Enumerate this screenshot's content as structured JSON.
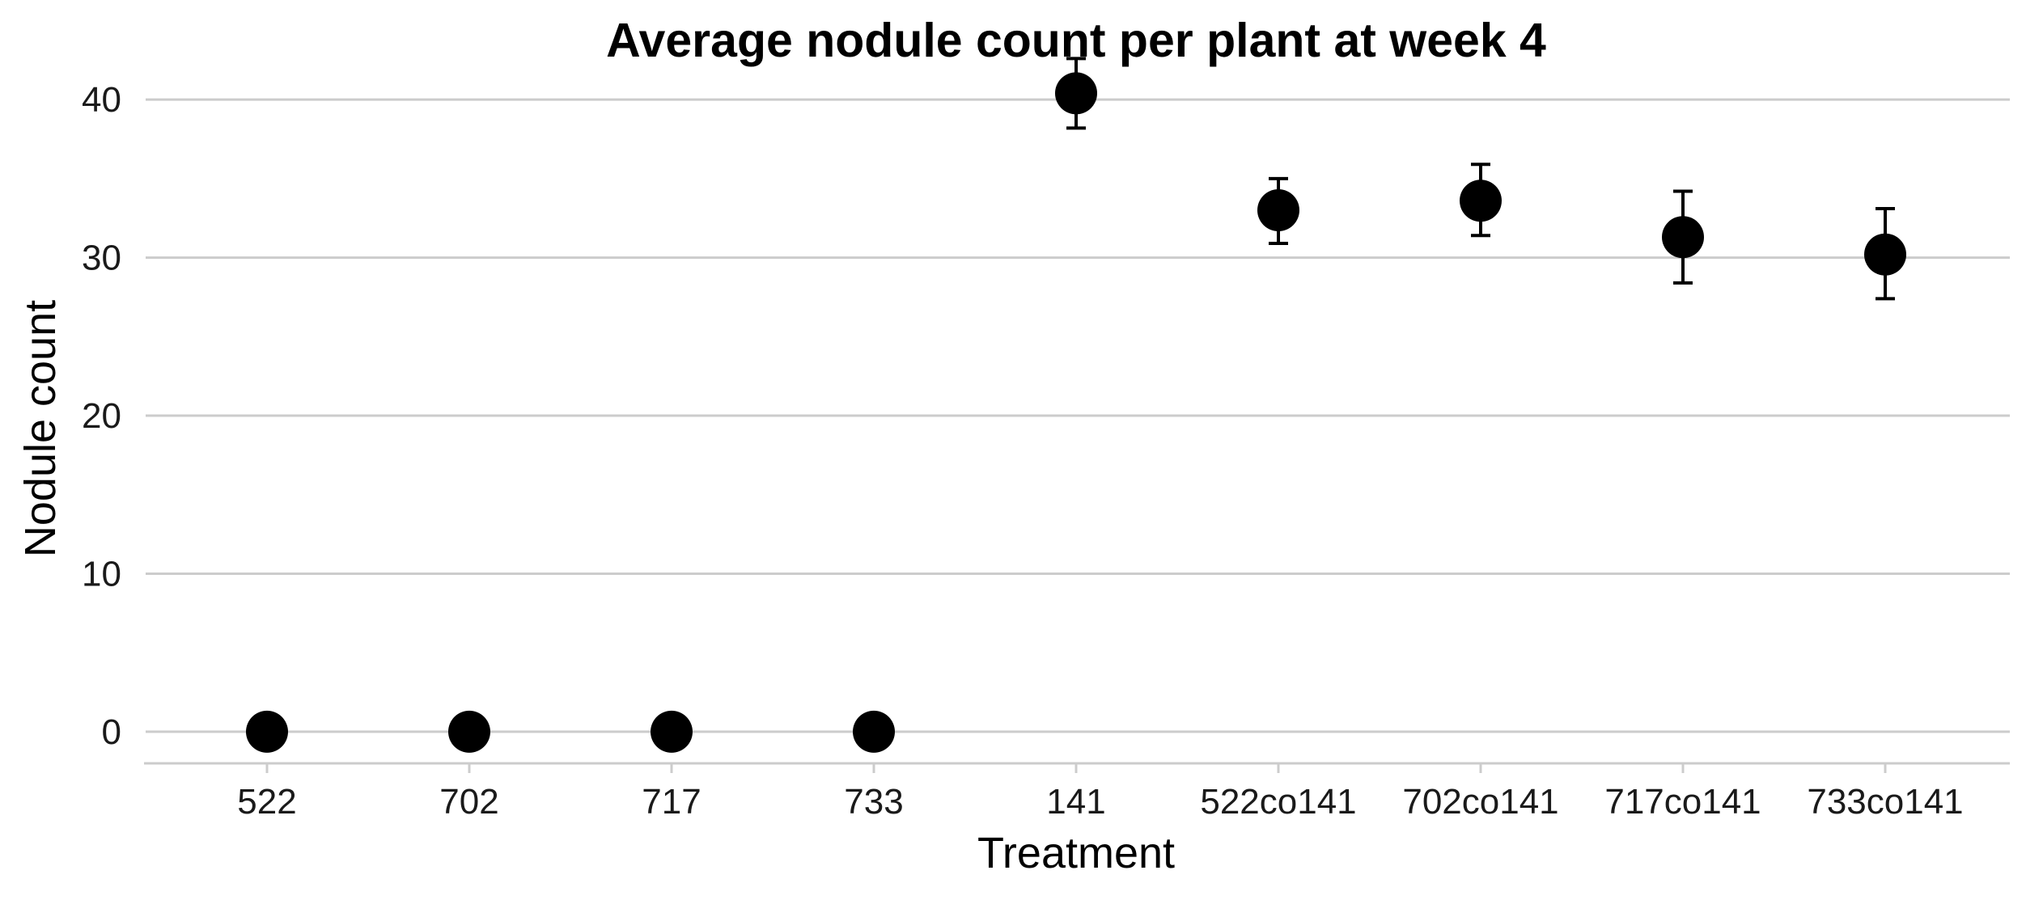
{
  "chart_data": {
    "type": "scatter",
    "title": "Average nodule count per plant at week 4",
    "xlabel": "Treatment",
    "ylabel": "Nodule count",
    "categories": [
      "522",
      "702",
      "717",
      "733",
      "141",
      "522co141",
      "702co141",
      "717co141",
      "733co141"
    ],
    "series": [
      {
        "values": [
          0,
          0,
          0,
          0,
          40.4,
          33.0,
          33.6,
          31.3,
          30.2
        ],
        "error_lower": [
          null,
          null,
          null,
          null,
          38.2,
          30.9,
          31.4,
          28.4,
          27.4
        ],
        "error_upper": [
          null,
          null,
          null,
          null,
          42.6,
          35.0,
          35.9,
          34.2,
          33.1
        ]
      }
    ],
    "yticks": [
      0,
      10,
      20,
      30,
      40
    ],
    "ylim": [
      -2,
      44
    ],
    "grid": "horizontal",
    "colors": {
      "point": "#000000",
      "grid": "#cccccc",
      "axis": "#cccccc"
    }
  }
}
